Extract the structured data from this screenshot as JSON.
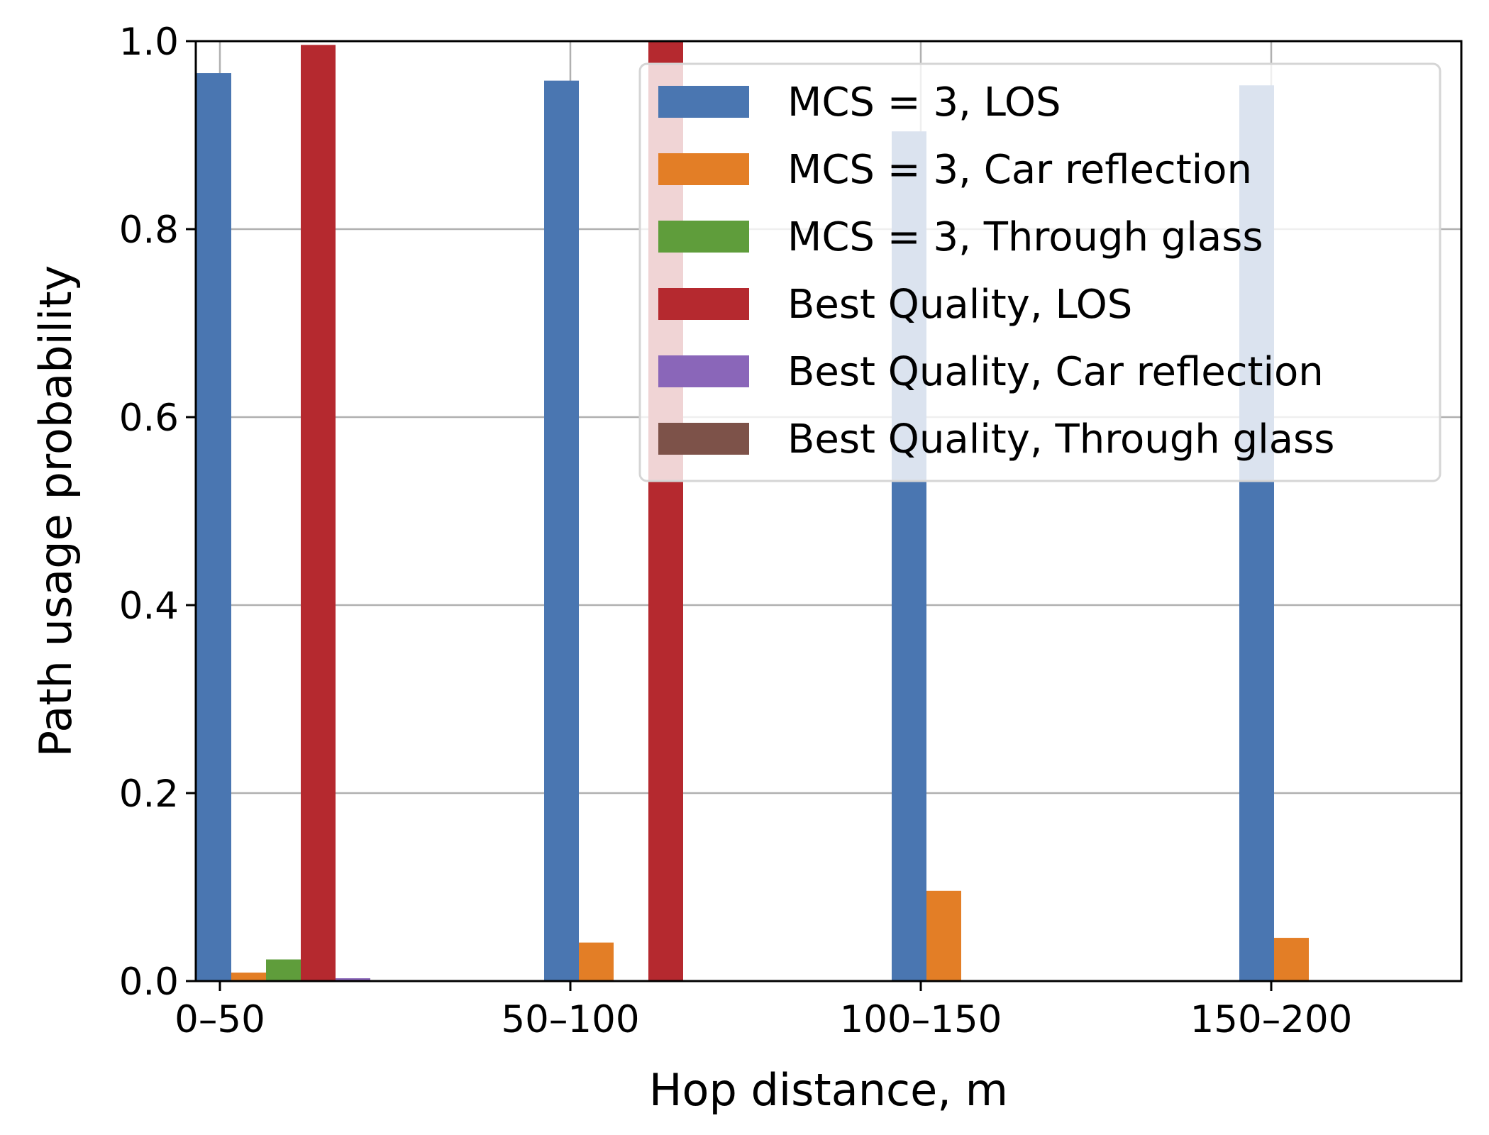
{
  "chart_data": {
    "type": "bar",
    "xlabel": "Hop distance, m",
    "ylabel": "Path usage probability",
    "categories": [
      "0–50",
      "50–100",
      "100–150",
      "150–200"
    ],
    "ylim": [
      0,
      1.0
    ],
    "yticks": [
      "0.0",
      "0.2",
      "0.4",
      "0.6",
      "0.8",
      "1.0"
    ],
    "grid": true,
    "legend_position": "top-right",
    "series": [
      {
        "name": "MCS = 3, LOS",
        "color": "#4a76b1",
        "values": [
          0.966,
          0.958,
          0.904,
          0.953
        ]
      },
      {
        "name": "MCS = 3, Car reflection",
        "color": "#e37e26",
        "values": [
          0.009,
          0.041,
          0.096,
          0.046
        ]
      },
      {
        "name": "MCS = 3, Through glass",
        "color": "#5f9d3b",
        "values": [
          0.023,
          0,
          0,
          0
        ]
      },
      {
        "name": "Best Quality, LOS",
        "color": "#b5292f",
        "values": [
          0.996,
          1.0,
          0,
          0
        ]
      },
      {
        "name": "Best Quality, Car reflection",
        "color": "#8a66b9",
        "values": [
          0.003,
          0,
          0,
          0
        ]
      },
      {
        "name": "Best Quality, Through glass",
        "color": "#7d5249",
        "values": [
          0,
          0,
          0,
          0
        ]
      }
    ]
  }
}
